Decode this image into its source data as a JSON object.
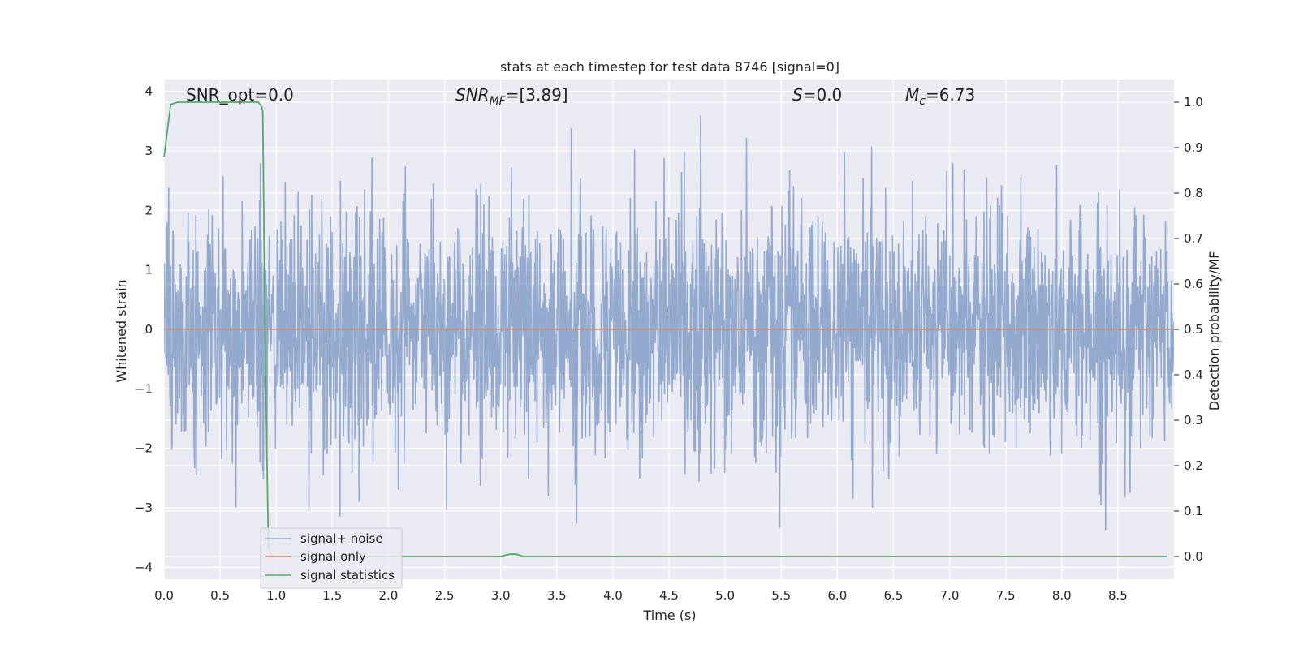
{
  "chart_data": {
    "type": "line",
    "title": "stats at each timestep for test data 8746 [signal=0]",
    "xlabel": "Time (s)",
    "ylabel": "Whitened strain",
    "y2label": "Detection probability/MF",
    "xlim": [
      0,
      9
    ],
    "ylim": [
      -4.2,
      4.2
    ],
    "y2lim": [
      -0.05,
      1.05
    ],
    "xticks": [
      "0.0",
      "0.5",
      "1.0",
      "1.5",
      "2.0",
      "2.5",
      "3.0",
      "3.5",
      "4.0",
      "4.5",
      "5.0",
      "5.5",
      "6.0",
      "6.5",
      "7.0",
      "7.5",
      "8.0",
      "8.5"
    ],
    "yticks": [
      "−4",
      "−3",
      "−2",
      "−1",
      "0",
      "1",
      "2",
      "3",
      "4"
    ],
    "y2ticks": [
      "0.0",
      "0.1",
      "0.2",
      "0.3",
      "0.4",
      "0.5",
      "0.6",
      "0.7",
      "0.8",
      "0.9",
      "1.0"
    ],
    "grid": true,
    "legend_position": "lower-left",
    "annotations": {
      "snr_opt": "SNR_opt=0.0",
      "snr_mf": "SNR",
      "snr_mf_sub": "MF",
      "snr_mf_value": "=[3.89]",
      "s_symbol": "S",
      "s_value": "=0.0",
      "mc_symbol": "M",
      "mc_sub": "c",
      "mc_value": "=6.73"
    },
    "series": [
      {
        "name": "signal+ noise",
        "axis": "left",
        "color": "#4c72b0",
        "noise_rms": 1.0,
        "range": [
          -3.5,
          3.6
        ],
        "sample_rate_hz": 2048,
        "note_visible": "dense noise band filling roughly ±2 with spikes to about ±3.5"
      },
      {
        "name": "signal only",
        "axis": "left",
        "color": "#dd8452",
        "x": [
          0,
          9
        ],
        "y": [
          0,
          0
        ]
      },
      {
        "name": "signal statistics",
        "axis": "right",
        "color": "#55a868",
        "x": [
          0,
          0.06,
          0.12,
          0.2,
          0.4,
          0.6,
          0.8,
          0.84,
          0.87,
          0.88,
          0.9,
          0.93,
          0.96,
          1.0,
          1.5,
          2.0,
          2.5,
          2.9,
          3.0,
          3.08,
          3.14,
          3.2,
          3.3,
          4.0,
          5.0,
          6.0,
          7.0,
          8.0,
          8.5,
          8.94
        ],
        "y": [
          0.88,
          0.995,
          1.0,
          1.0,
          1.0,
          1.0,
          1.0,
          1.0,
          0.99,
          0.98,
          0.5,
          0.02,
          0.0,
          0.0,
          0.0,
          0.0,
          0.0,
          0.0,
          0.0,
          0.005,
          0.005,
          0.0,
          0.0,
          0.0,
          0.0,
          0.0,
          0.0,
          0.0,
          0.0,
          0.0
        ]
      }
    ]
  }
}
